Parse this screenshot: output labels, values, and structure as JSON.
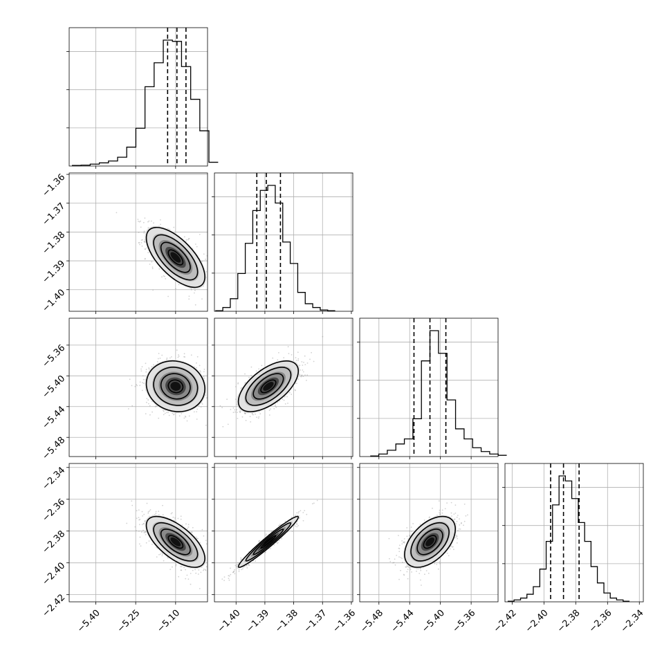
{
  "chart_data": {
    "type": "corner",
    "grid": true,
    "parameters": [
      {
        "range": [
          -5.5,
          -4.98
        ],
        "ticks": [
          -5.4,
          -5.25,
          -5.1
        ],
        "tick_labels": [
          "−5.40",
          "−5.25",
          "−5.10"
        ],
        "quantiles": [
          -5.13,
          -5.095,
          -5.061
        ],
        "histogram": {
          "edges": [
            -5.4897,
            -5.4553,
            -5.421,
            -5.3867,
            -5.3523,
            -5.318,
            -5.2837,
            -5.2493,
            -5.215,
            -5.1807,
            -5.1463,
            -5.112,
            -5.0777,
            -5.0433,
            -5.009,
            -4.9747,
            -4.94
          ],
          "counts": [
            0.5,
            0.7,
            1.5,
            2.5,
            4,
            7,
            15,
            30,
            63,
            82,
            100,
            99,
            79,
            53,
            28,
            3
          ]
        }
      },
      {
        "range": [
          -1.4075,
          -1.3595
        ],
        "ticks": [
          -1.4,
          -1.39,
          -1.38,
          -1.37,
          -1.36
        ],
        "tick_labels": [
          "−1.40",
          "−1.39",
          "−1.38",
          "−1.37",
          "−1.36"
        ],
        "quantiles": [
          -1.3928,
          -1.3895,
          -1.3846
        ],
        "histogram": {
          "edges": [
            -1.4072,
            -1.4046,
            -1.402,
            -1.3994,
            -1.3968,
            -1.3942,
            -1.3916,
            -1.389,
            -1.3864,
            -1.3838,
            -1.3812,
            -1.3786,
            -1.376,
            -1.3734,
            -1.3708,
            -1.3682,
            -1.3656
          ],
          "counts": [
            0.5,
            3,
            10,
            30,
            54,
            80,
            96,
            100,
            86,
            55,
            38,
            15,
            6,
            3,
            1,
            0.5
          ]
        }
      },
      {
        "range": [
          -5.505,
          -5.325
        ],
        "ticks": [
          -5.48,
          -5.44,
          -5.4,
          -5.36
        ],
        "tick_labels": [
          "−5.48",
          "−5.44",
          "−5.40",
          "−5.36"
        ],
        "quantiles": [
          -5.4344,
          -5.4136,
          -5.3929
        ],
        "histogram": {
          "edges": [
            -5.4913,
            -5.4802,
            -5.4691,
            -5.458,
            -5.4469,
            -5.4358,
            -5.4247,
            -5.4136,
            -5.4025,
            -5.3914,
            -5.3803,
            -5.3692,
            -5.3581,
            -5.347,
            -5.3359,
            -5.3248,
            -5.3137
          ],
          "counts": [
            0.5,
            2,
            5,
            10,
            14,
            30,
            76,
            100,
            82,
            45,
            22,
            14,
            7,
            4,
            2,
            1
          ]
        }
      },
      {
        "range": [
          -2.4245,
          -2.3375
        ],
        "ticks": [
          -2.42,
          -2.4,
          -2.38,
          -2.36,
          -2.34
        ],
        "tick_labels": [
          "−2.42",
          "−2.40",
          "−2.38",
          "−2.36",
          "−2.34"
        ],
        "quantiles": [
          -2.3958,
          -2.3877,
          -2.3779
        ],
        "histogram": {
          "edges": [
            -2.4228,
            -2.4188,
            -2.4147,
            -2.4107,
            -2.4067,
            -2.4026,
            -2.3986,
            -2.3946,
            -2.3905,
            -2.3865,
            -2.3825,
            -2.3784,
            -2.3744,
            -2.3704,
            -2.3664,
            -2.3623,
            -2.3583,
            -2.3543,
            -2.3502,
            -2.3462
          ],
          "counts": [
            0.5,
            1.5,
            3,
            6,
            12,
            26,
            48,
            77,
            100,
            96,
            82,
            63,
            48,
            28,
            15,
            7,
            3,
            1.5,
            0.5
          ]
        }
      }
    ],
    "joint": [
      {
        "row": 1,
        "col": 0,
        "mean": [
          -5.1,
          -1.3888
        ],
        "sd": [
          0.055,
          0.0052
        ],
        "rho": -0.65
      },
      {
        "row": 2,
        "col": 0,
        "mean": [
          -5.1,
          -5.4136
        ],
        "sd": [
          0.055,
          0.0165
        ],
        "rho": -0.1
      },
      {
        "row": 2,
        "col": 1,
        "mean": [
          -1.3888,
          -5.4136
        ],
        "sd": [
          0.0052,
          0.0165
        ],
        "rho": 0.6
      },
      {
        "row": 3,
        "col": 0,
        "mean": [
          -5.1,
          -2.3868
        ],
        "sd": [
          0.055,
          0.008
        ],
        "rho": -0.65
      },
      {
        "row": 3,
        "col": 1,
        "mean": [
          -1.3888,
          -2.3868
        ],
        "sd": [
          0.0052,
          0.008
        ],
        "rho": 0.97
      },
      {
        "row": 3,
        "col": 2,
        "mean": [
          -5.4136,
          -2.3868
        ],
        "sd": [
          0.0165,
          0.008
        ],
        "rho": 0.5
      }
    ]
  }
}
